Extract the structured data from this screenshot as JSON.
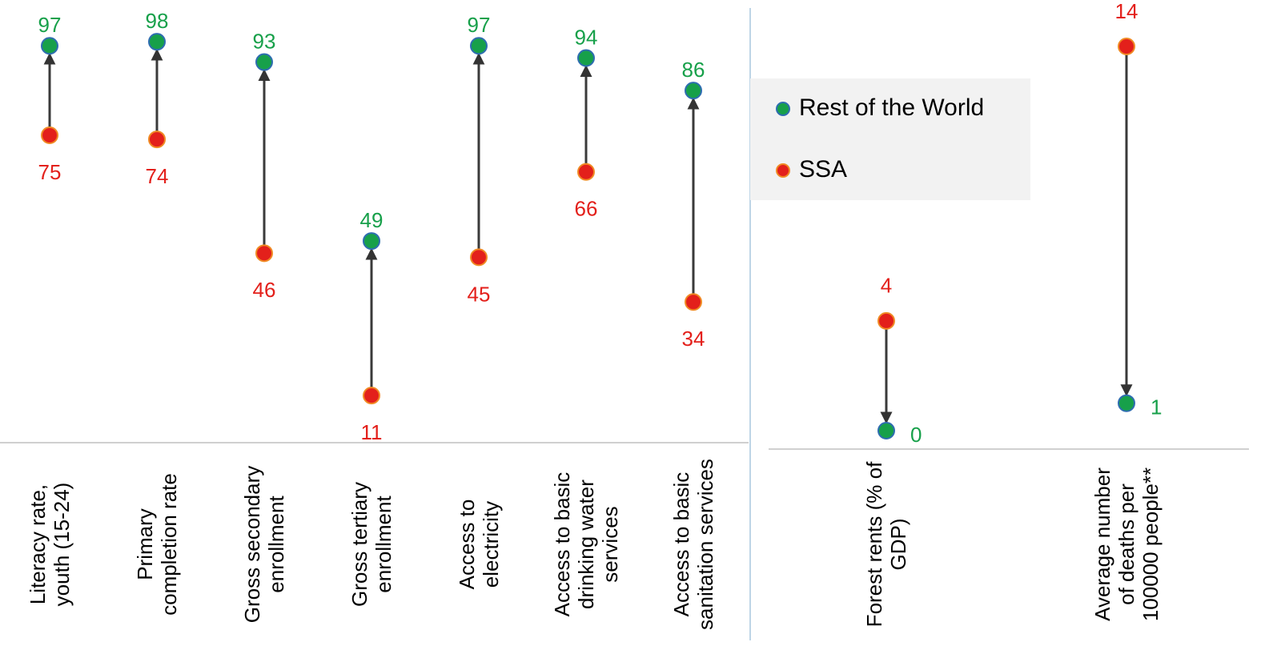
{
  "chart_data": [
    {
      "type": "dumbbell",
      "categories": [
        "Literacy rate, youth (15-24)",
        "Primary completion rate",
        "Gross secondary enrollment",
        "Gross tertiary enrollment",
        "Access to electricity",
        "Access to basic drinking water services",
        "Access to basic sanitation services"
      ],
      "series": [
        {
          "color": "#17a04a",
          "values": [
            97,
            98,
            93,
            49,
            97,
            94,
            86
          ]
        },
        {
          "color": "#e3201b",
          "values": [
            75,
            74,
            46,
            11,
            45,
            66,
            34
          ]
        }
      ],
      "ylim": [
        0,
        100
      ]
    },
    {
      "type": "dumbbell",
      "categories": [
        "Forest rents (% of GDP)",
        "Average number of deaths per 100000 people**"
      ],
      "series": [
        {
          "name": "Rest of the World",
          "color": "#17a04a",
          "values": [
            0,
            1
          ]
        },
        {
          "name": "SSA",
          "color": "#e3201b",
          "values": [
            4,
            14
          ]
        }
      ],
      "ylim": [
        0,
        14
      ],
      "legend": "upper left"
    }
  ]
}
